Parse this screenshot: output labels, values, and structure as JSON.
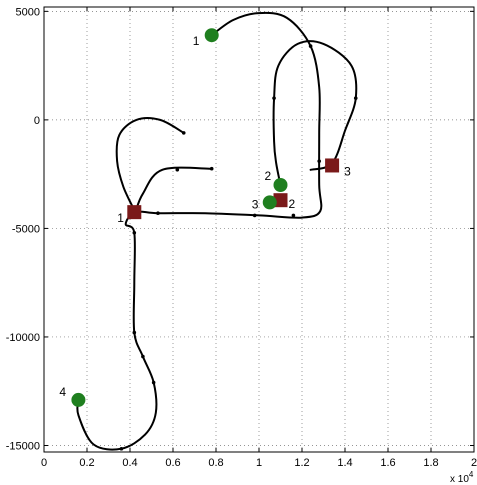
{
  "chart_data": {
    "type": "line",
    "title": "",
    "xlabel": "",
    "ylabel": "",
    "x_exponent_label": "x 10",
    "x_exponent": "4",
    "xlim": [
      0,
      20000
    ],
    "ylim": [
      -15300,
      5200
    ],
    "grid": true,
    "x_ticks": [
      {
        "value": 0,
        "label": "0"
      },
      {
        "value": 2000,
        "label": "0.2"
      },
      {
        "value": 4000,
        "label": "0.4"
      },
      {
        "value": 6000,
        "label": "0.6"
      },
      {
        "value": 8000,
        "label": "0.8"
      },
      {
        "value": 10000,
        "label": "1"
      },
      {
        "value": 12000,
        "label": "1.2"
      },
      {
        "value": 14000,
        "label": "1.4"
      },
      {
        "value": 16000,
        "label": "1.6"
      },
      {
        "value": 18000,
        "label": "1.8"
      },
      {
        "value": 20000,
        "label": "2"
      }
    ],
    "y_ticks": [
      {
        "value": 5000,
        "label": "5000"
      },
      {
        "value": 0,
        "label": "0"
      },
      {
        "value": -5000,
        "label": "-5000"
      },
      {
        "value": -10000,
        "label": "-10000"
      },
      {
        "value": -15000,
        "label": "-15000"
      }
    ],
    "series": [
      {
        "path": [
          [
            7800,
            3900
          ],
          [
            8800,
            4600
          ],
          [
            10000,
            4920
          ],
          [
            11300,
            4700
          ],
          [
            12400,
            3400
          ],
          [
            12800,
            1500
          ],
          [
            12800,
            -600
          ],
          [
            12800,
            -3000
          ],
          [
            12850,
            -4200
          ],
          [
            12000,
            -4500
          ],
          [
            10000,
            -4400
          ],
          [
            7500,
            -4300
          ],
          [
            5300,
            -4300
          ],
          [
            4250,
            -4250
          ],
          [
            3800,
            -4800
          ],
          [
            4200,
            -5200
          ],
          [
            4200,
            -7500
          ],
          [
            4200,
            -9800
          ],
          [
            4600,
            -10900
          ],
          [
            5100,
            -12100
          ],
          [
            5200,
            -13500
          ],
          [
            4700,
            -14500
          ],
          [
            3600,
            -15150
          ],
          [
            2300,
            -14950
          ],
          [
            1600,
            -13600
          ],
          [
            1600,
            -12900
          ]
        ],
        "nodes": [
          [
            12400,
            3400
          ],
          [
            9800,
            -4400
          ],
          [
            11600,
            -4400
          ],
          [
            5300,
            -4300
          ],
          [
            4200,
            -5200
          ],
          [
            4200,
            -9800
          ],
          [
            4600,
            -10900
          ],
          [
            5100,
            -12100
          ],
          [
            3600,
            -15150
          ]
        ]
      },
      {
        "path": [
          [
            11000,
            -3000
          ],
          [
            10800,
            -2000
          ],
          [
            10700,
            -1000
          ],
          [
            10700,
            1000
          ],
          [
            10900,
            2500
          ],
          [
            11800,
            3500
          ],
          [
            13000,
            3500
          ],
          [
            14300,
            2500
          ],
          [
            14500,
            1000
          ],
          [
            14000,
            -500
          ],
          [
            13400,
            -2000
          ],
          [
            12400,
            -2300
          ]
        ],
        "nodes": [
          [
            10700,
            1000
          ],
          [
            14500,
            1000
          ],
          [
            12800,
            -1900
          ]
        ]
      },
      {
        "path": [
          [
            4250,
            -4250
          ],
          [
            3700,
            -3100
          ],
          [
            3400,
            -1900
          ],
          [
            3500,
            -700
          ],
          [
            4300,
            0
          ],
          [
            5400,
            0
          ],
          [
            6500,
            -600
          ]
        ],
        "nodes": [
          [
            6500,
            -600
          ]
        ]
      },
      {
        "path": [
          [
            4250,
            -4250
          ],
          [
            4600,
            -3400
          ],
          [
            5500,
            -2300
          ],
          [
            7800,
            -2250
          ]
        ],
        "nodes": [
          [
            6200,
            -2300
          ],
          [
            7800,
            -2250
          ]
        ]
      },
      {
        "path": [
          [
            11000,
            -3700
          ],
          [
            10600,
            -3700
          ]
        ],
        "nodes": []
      }
    ],
    "circle_markers": [
      {
        "label": "1",
        "x": 7800,
        "y": 3900
      },
      {
        "label": "2",
        "x": 11000,
        "y": -3000
      },
      {
        "label": "3",
        "x": 10500,
        "y": -3800
      },
      {
        "label": "4",
        "x": 1600,
        "y": -12900
      }
    ],
    "square_markers": [
      {
        "label": "1",
        "x": 4200,
        "y": -4250
      },
      {
        "label": "2",
        "x": 11000,
        "y": -3700
      },
      {
        "label": "3",
        "x": 13400,
        "y": -2100
      }
    ],
    "colors": {
      "circle_marker": "#1f7f1f",
      "square_marker": "#7a1a1a",
      "path": "#000000"
    }
  }
}
